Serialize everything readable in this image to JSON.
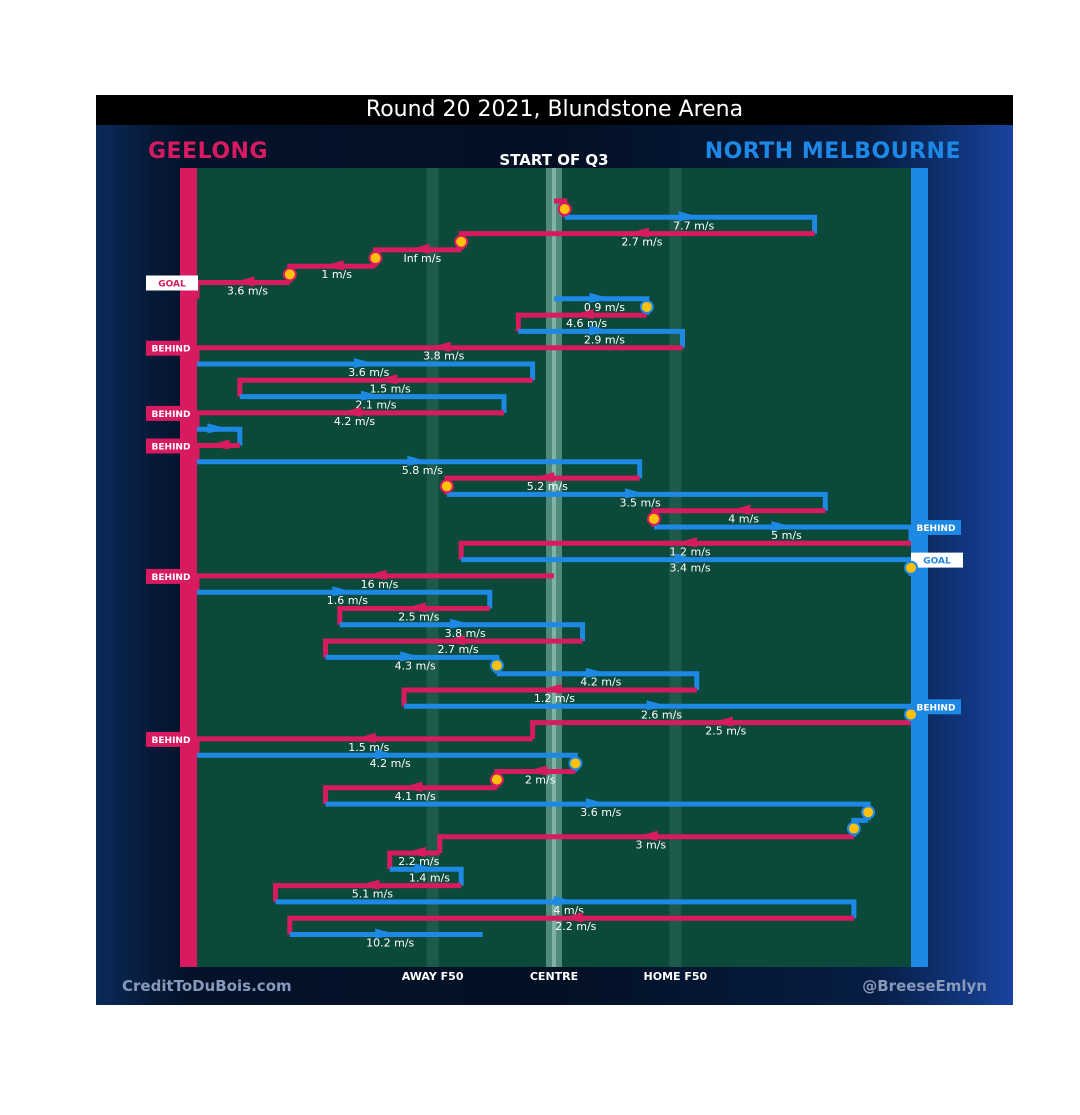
{
  "title": "Round 20 2021, Blundstone Arena",
  "quarter_label": "START OF Q3",
  "teams": {
    "left": "GEELONG",
    "right": "NORTH MELBOURNE"
  },
  "credits": {
    "left": "CreditToDuBois.com",
    "right": "@BreeseEmlyn"
  },
  "colors": {
    "left_team": "#d81b60",
    "right_team": "#1e88e5",
    "field": "#0b4a3a"
  },
  "axis_labels": {
    "away": "AWAY F50",
    "centre": "CENTRE",
    "home": "HOME F50"
  },
  "chart_data": {
    "type": "line",
    "x_range": [
      0,
      100
    ],
    "x_markers": {
      "away_f50": 33,
      "centre": 50,
      "home_f50": 67
    },
    "chains": [
      {
        "team": "home",
        "start": 50,
        "end": 51.5,
        "speed": "",
        "end_event": ""
      },
      {
        "team": "away",
        "start": 51.5,
        "end": 86.5,
        "speed": "7.7 m/s",
        "end_event": ""
      },
      {
        "team": "home",
        "start": 86.5,
        "end": 37,
        "speed": "2.7 m/s",
        "end_event": ""
      },
      {
        "team": "home",
        "start": 37,
        "end": 25,
        "speed": "Inf m/s",
        "end_event": ""
      },
      {
        "team": "home",
        "start": 25,
        "end": 13,
        "speed": "1 m/s",
        "end_event": ""
      },
      {
        "team": "home",
        "start": 13,
        "end": 0,
        "speed": "3.6 m/s",
        "end_event": "GOAL"
      },
      {
        "team": "away",
        "start": 50,
        "end": 63,
        "speed": "0.9 m/s",
        "end_event": ""
      },
      {
        "team": "home",
        "start": 63,
        "end": 45,
        "speed": "4.6 m/s",
        "end_event": ""
      },
      {
        "team": "away",
        "start": 45,
        "end": 68,
        "speed": "2.9 m/s",
        "end_event": ""
      },
      {
        "team": "home",
        "start": 68,
        "end": 0,
        "speed": "3.8 m/s",
        "end_event": "BEHIND"
      },
      {
        "team": "away",
        "start": 0,
        "end": 47,
        "speed": "3.6 m/s",
        "end_event": ""
      },
      {
        "team": "home",
        "start": 47,
        "end": 6,
        "speed": "1.5 m/s",
        "end_event": ""
      },
      {
        "team": "away",
        "start": 6,
        "end": 43,
        "speed": "2.1 m/s",
        "end_event": ""
      },
      {
        "team": "home",
        "start": 43,
        "end": 0,
        "speed": "4.2 m/s",
        "end_event": "BEHIND"
      },
      {
        "team": "away",
        "start": 0,
        "end": 6,
        "speed": "",
        "end_event": ""
      },
      {
        "team": "home",
        "start": 6,
        "end": 0,
        "speed": "",
        "end_event": "BEHIND"
      },
      {
        "team": "away",
        "start": 0,
        "end": 62,
        "speed": "5.8 m/s",
        "end_event": ""
      },
      {
        "team": "home",
        "start": 62,
        "end": 35,
        "speed": "5.2 m/s",
        "end_event": ""
      },
      {
        "team": "away",
        "start": 35,
        "end": 88,
        "speed": "3.5 m/s",
        "end_event": ""
      },
      {
        "team": "home",
        "start": 88,
        "end": 64,
        "speed": "4 m/s",
        "end_event": ""
      },
      {
        "team": "away",
        "start": 64,
        "end": 100,
        "speed": "5 m/s",
        "end_event": "BEHIND"
      },
      {
        "team": "home",
        "start": 100,
        "end": 37,
        "speed": "1.2 m/s",
        "end_event": ""
      },
      {
        "team": "away",
        "start": 37,
        "end": 100,
        "speed": "3.4 m/s",
        "end_event": "GOAL"
      },
      {
        "team": "home",
        "start": 50,
        "end": 0,
        "speed": "16 m/s",
        "end_event": "BEHIND"
      },
      {
        "team": "away",
        "start": 0,
        "end": 41,
        "speed": "1.6 m/s",
        "end_event": ""
      },
      {
        "team": "home",
        "start": 41,
        "end": 20,
        "speed": "2.5 m/s",
        "end_event": ""
      },
      {
        "team": "away",
        "start": 20,
        "end": 54,
        "speed": "3.8 m/s",
        "end_event": ""
      },
      {
        "team": "home",
        "start": 54,
        "end": 18,
        "speed": "2.7 m/s",
        "end_event": ""
      },
      {
        "team": "away",
        "start": 18,
        "end": 42,
        "speed": "4.3 m/s",
        "end_event": ""
      },
      {
        "team": "away",
        "start": 42,
        "end": 70,
        "speed": "4.2 m/s",
        "end_event": ""
      },
      {
        "team": "home",
        "start": 70,
        "end": 29,
        "speed": "1.2 m/s",
        "end_event": ""
      },
      {
        "team": "away",
        "start": 29,
        "end": 100,
        "speed": "2.6 m/s",
        "end_event": "BEHIND"
      },
      {
        "team": "home",
        "start": 100,
        "end": 47,
        "speed": "2.5 m/s",
        "end_event": ""
      },
      {
        "team": "home",
        "start": 47,
        "end": 0,
        "speed": "1.5 m/s",
        "end_event": "BEHIND"
      },
      {
        "team": "away",
        "start": 0,
        "end": 53,
        "speed": "4.2 m/s",
        "end_event": ""
      },
      {
        "team": "home",
        "start": 53,
        "end": 42,
        "speed": "2 m/s",
        "end_event": ""
      },
      {
        "team": "home",
        "start": 42,
        "end": 18,
        "speed": "4.1 m/s",
        "end_event": ""
      },
      {
        "team": "away",
        "start": 18,
        "end": 94,
        "speed": "3.6 m/s",
        "end_event": ""
      },
      {
        "team": "away",
        "start": 94,
        "end": 92,
        "speed": "",
        "end_event": ""
      },
      {
        "team": "home",
        "start": 92,
        "end": 34,
        "speed": "3 m/s",
        "end_event": ""
      },
      {
        "team": "home",
        "start": 34,
        "end": 27,
        "speed": "2.2 m/s",
        "end_event": ""
      },
      {
        "team": "away",
        "start": 27,
        "end": 37,
        "speed": "1.4 m/s",
        "end_event": ""
      },
      {
        "team": "home",
        "start": 37,
        "end": 11,
        "speed": "5.1 m/s",
        "end_event": ""
      },
      {
        "team": "away",
        "start": 11,
        "end": 92,
        "speed": "4 m/s",
        "end_event": ""
      },
      {
        "team": "home",
        "start": 92,
        "end": 13,
        "speed": "2.2 m/s",
        "end_event": ""
      },
      {
        "team": "away",
        "start": 13,
        "end": 40,
        "speed": "10.2 m/s",
        "end_event": ""
      }
    ],
    "markers_after": [
      0,
      2,
      3,
      4,
      6,
      17,
      19,
      22,
      28,
      31,
      34,
      35,
      37,
      38
    ]
  }
}
